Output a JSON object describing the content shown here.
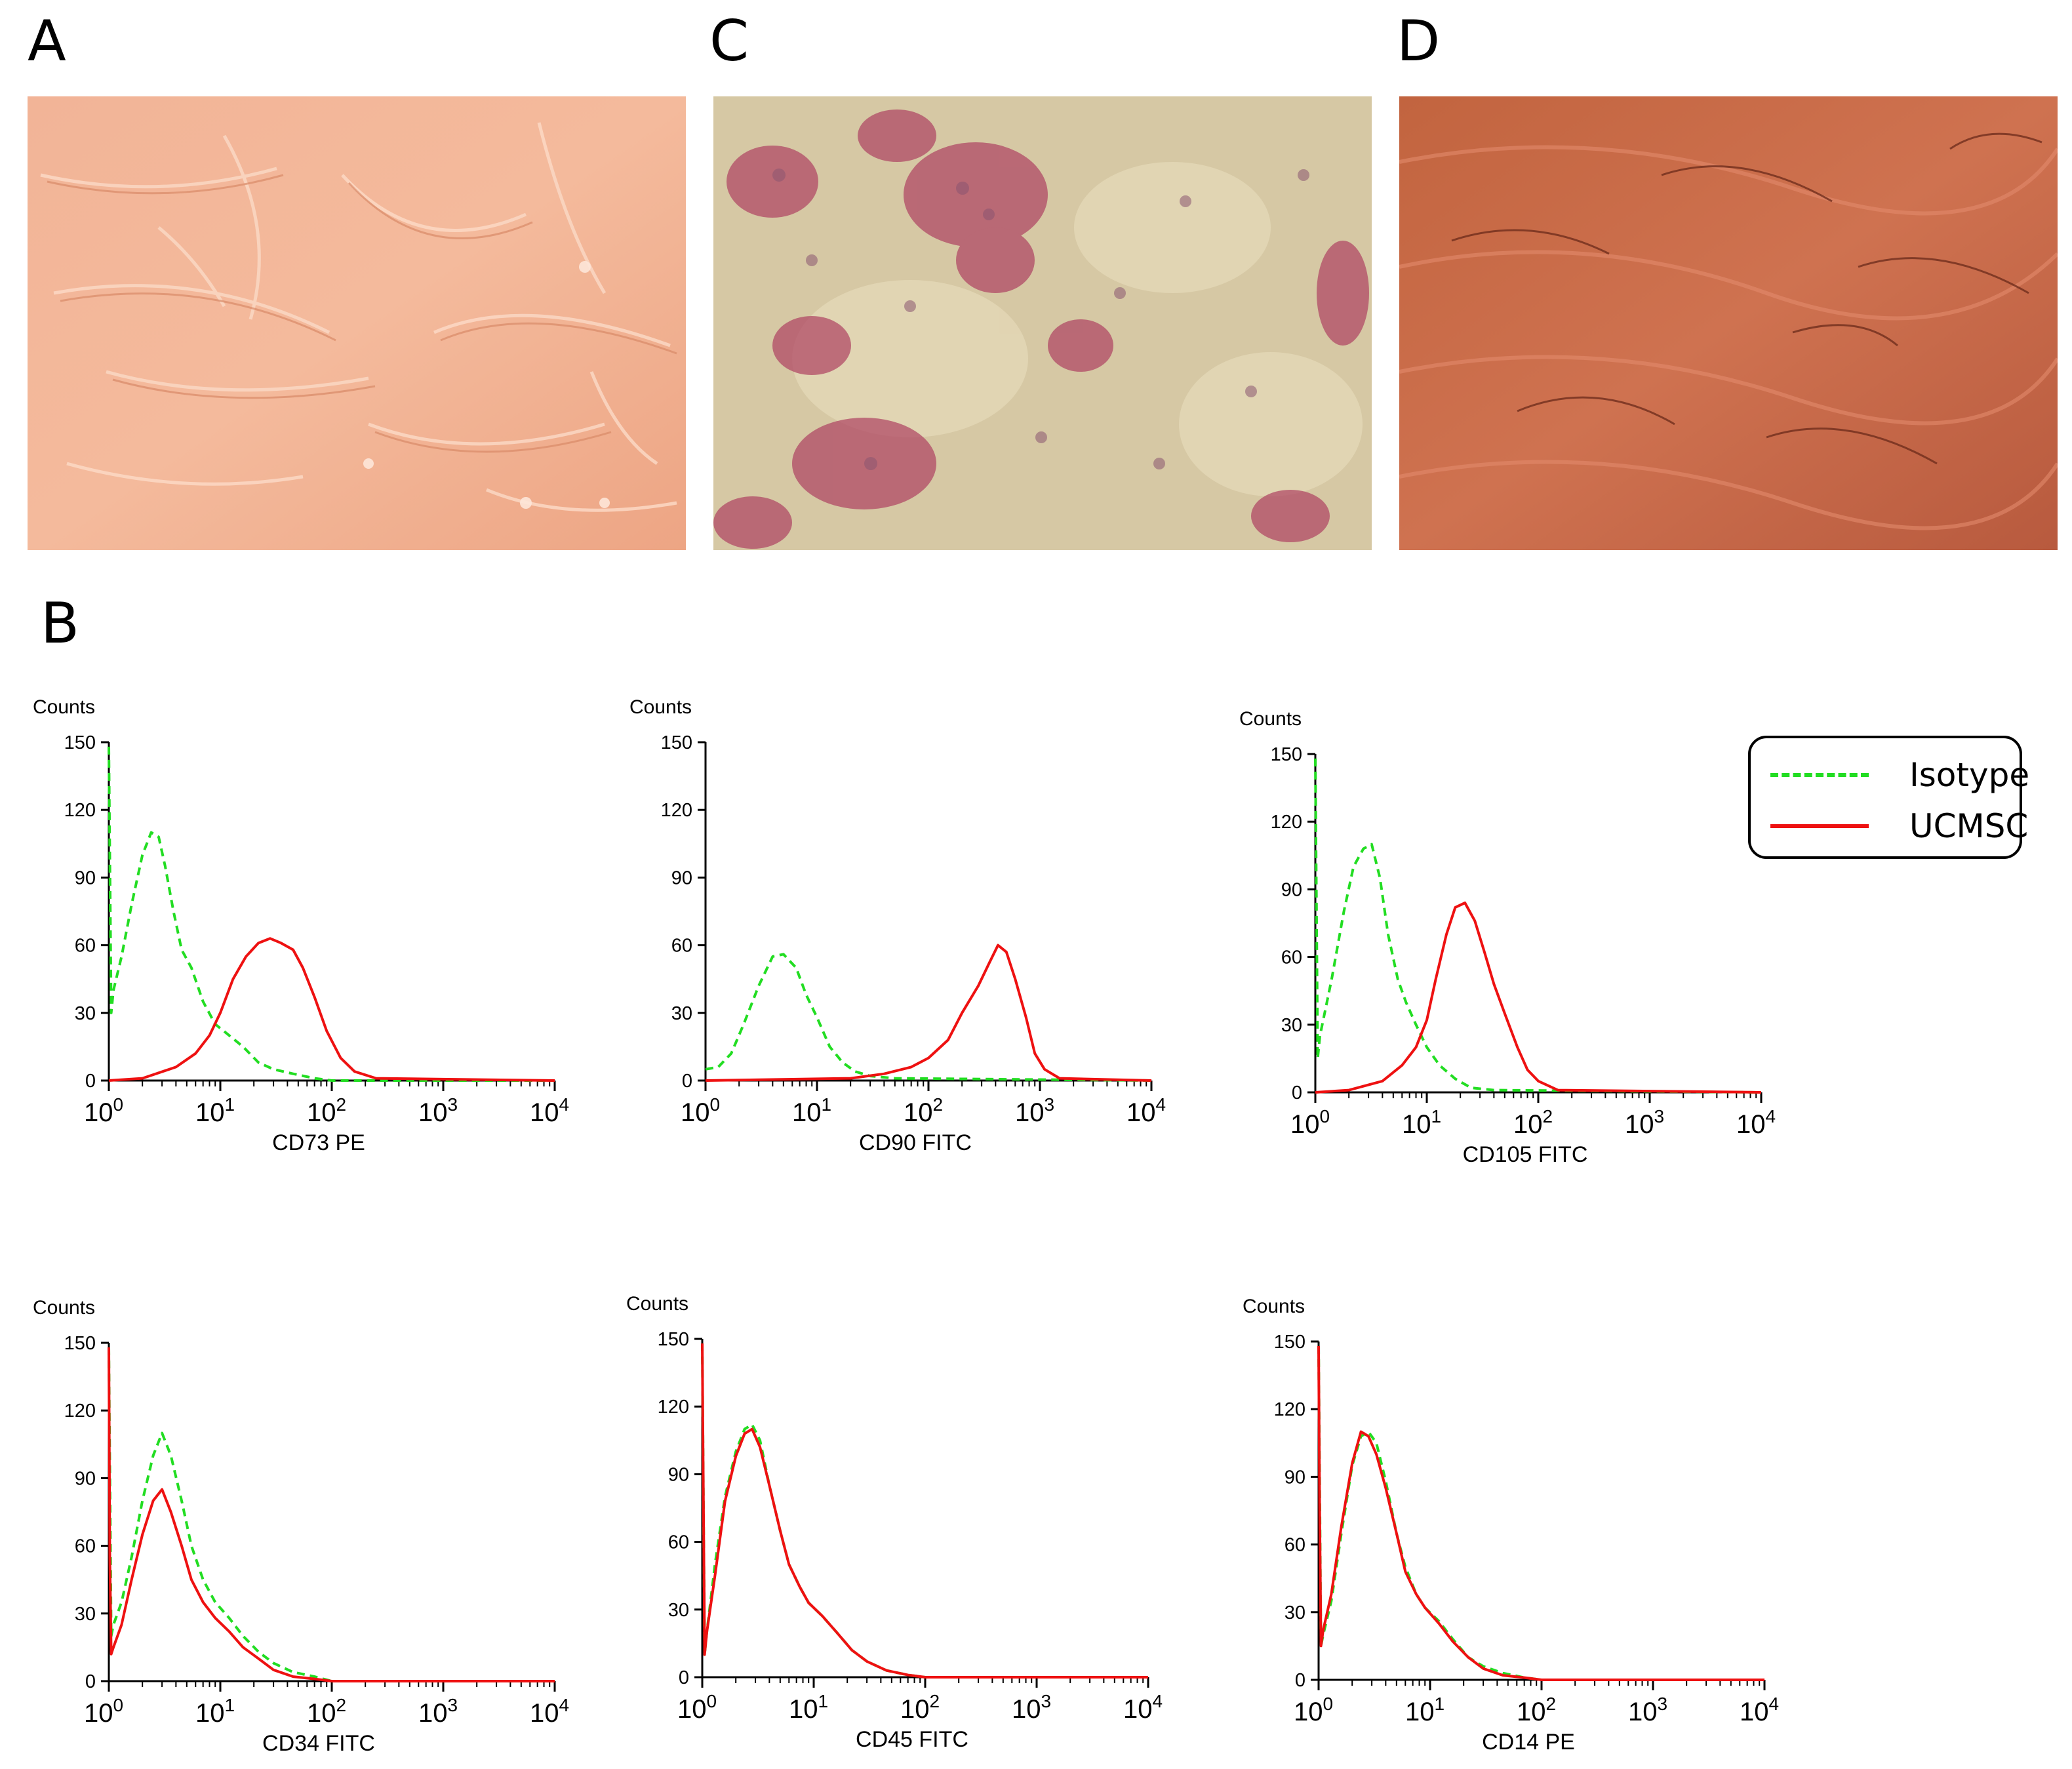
{
  "panels": {
    "a_label": "A",
    "c_label": "C",
    "d_label": "D",
    "b_label": "B"
  },
  "photos": [
    {
      "name": "photo-a",
      "description_colors": {
        "base": "#f0a98a",
        "line": "#ffe0cc"
      }
    },
    {
      "name": "photo-c",
      "description_colors": {
        "base": "#d8c6a2",
        "spot": "#b0405e"
      }
    },
    {
      "name": "photo-d",
      "description_colors": {
        "base": "#c86a4a",
        "line": "#7a2a1a"
      }
    }
  ],
  "legend": {
    "isotype_label": "Isotype",
    "ucmsc_label": "UCMSC",
    "isotype_color": "#22dd22",
    "ucmsc_color": "#ee1111"
  },
  "chart_data": [
    {
      "type": "line",
      "ylabel": "Counts",
      "xlabel": "CD73 PE",
      "x_scale": "log",
      "xlim": [
        1,
        10000
      ],
      "ylim": [
        0,
        150
      ],
      "yticks": [
        "150",
        "120",
        "90",
        "60",
        "30",
        "0"
      ],
      "xticks": [
        {
          "base": "10",
          "exp": "0"
        },
        {
          "base": "10",
          "exp": "1"
        },
        {
          "base": "10",
          "exp": "2"
        },
        {
          "base": "10",
          "exp": "3"
        },
        {
          "base": "10",
          "exp": "4"
        }
      ],
      "series": [
        {
          "role": "isotype",
          "x": [
            1,
            1.05,
            1.1,
            1.3,
            1.6,
            2,
            2.4,
            2.8,
            3.2,
            3.8,
            4.5,
            5.5,
            7,
            9,
            12,
            16,
            22,
            30,
            45,
            70,
            100,
            10000
          ],
          "y": [
            148,
            30,
            40,
            55,
            78,
            100,
            110,
            108,
            95,
            75,
            58,
            50,
            35,
            25,
            20,
            15,
            8,
            5,
            3,
            1,
            0,
            0
          ]
        },
        {
          "role": "ucmsc",
          "x": [
            1,
            2,
            4,
            6,
            8,
            10,
            13,
            17,
            22,
            28,
            35,
            45,
            55,
            70,
            90,
            120,
            160,
            250,
            10000
          ],
          "y": [
            0,
            1,
            6,
            12,
            20,
            30,
            45,
            55,
            61,
            63,
            61,
            58,
            50,
            37,
            22,
            10,
            4,
            1,
            0
          ]
        }
      ]
    },
    {
      "type": "line",
      "ylabel": "Counts",
      "xlabel": "CD90 FITC",
      "x_scale": "log",
      "xlim": [
        1,
        10000
      ],
      "ylim": [
        0,
        150
      ],
      "yticks": [
        "150",
        "120",
        "90",
        "60",
        "30",
        "0"
      ],
      "xticks": [
        {
          "base": "10",
          "exp": "0"
        },
        {
          "base": "10",
          "exp": "1"
        },
        {
          "base": "10",
          "exp": "2"
        },
        {
          "base": "10",
          "exp": "3"
        },
        {
          "base": "10",
          "exp": "4"
        }
      ],
      "series": [
        {
          "role": "isotype",
          "x": [
            1,
            1.3,
            1.7,
            2.2,
            3,
            4,
            5,
            6.5,
            8,
            10,
            13,
            17,
            22,
            30,
            50,
            10000
          ],
          "y": [
            5,
            6,
            12,
            25,
            42,
            55,
            56,
            50,
            38,
            28,
            15,
            8,
            4,
            2,
            1,
            0
          ]
        },
        {
          "role": "ucmsc",
          "x": [
            1,
            20,
            40,
            70,
            100,
            150,
            200,
            280,
            350,
            420,
            500,
            600,
            750,
            900,
            1100,
            1500,
            10000
          ],
          "y": [
            0,
            1,
            3,
            6,
            10,
            18,
            30,
            42,
            52,
            60,
            57,
            45,
            28,
            12,
            5,
            1,
            0
          ]
        }
      ]
    },
    {
      "type": "line",
      "ylabel": "Counts",
      "xlabel": "CD105 FITC",
      "x_scale": "log",
      "xlim": [
        1,
        10000
      ],
      "ylim": [
        0,
        150
      ],
      "yticks": [
        "150",
        "120",
        "90",
        "60",
        "30",
        "0"
      ],
      "xticks": [
        {
          "base": "10",
          "exp": "0"
        },
        {
          "base": "10",
          "exp": "1"
        },
        {
          "base": "10",
          "exp": "2"
        },
        {
          "base": "10",
          "exp": "3"
        },
        {
          "base": "10",
          "exp": "4"
        }
      ],
      "series": [
        {
          "role": "isotype",
          "x": [
            1,
            1.05,
            1.1,
            1.4,
            1.8,
            2.2,
            2.7,
            3.2,
            3.8,
            4.5,
            5.5,
            6.5,
            8,
            10,
            13,
            18,
            25,
            40,
            10000
          ],
          "y": [
            148,
            15,
            25,
            50,
            80,
            100,
            108,
            110,
            95,
            70,
            50,
            40,
            30,
            20,
            12,
            6,
            2,
            1,
            0
          ]
        },
        {
          "role": "ucmsc",
          "x": [
            1,
            2,
            4,
            6,
            8,
            10,
            12,
            15,
            18,
            22,
            27,
            33,
            40,
            50,
            65,
            80,
            100,
            150,
            10000
          ],
          "y": [
            0,
            1,
            5,
            12,
            20,
            32,
            50,
            70,
            82,
            84,
            76,
            62,
            48,
            35,
            20,
            10,
            5,
            1,
            0
          ]
        }
      ]
    },
    {
      "type": "line",
      "ylabel": "Counts",
      "xlabel": "CD34 FITC",
      "x_scale": "log",
      "xlim": [
        1,
        10000
      ],
      "ylim": [
        0,
        150
      ],
      "yticks": [
        "150",
        "120",
        "90",
        "60",
        "30",
        "0"
      ],
      "xticks": [
        {
          "base": "10",
          "exp": "0"
        },
        {
          "base": "10",
          "exp": "1"
        },
        {
          "base": "10",
          "exp": "2"
        },
        {
          "base": "10",
          "exp": "3"
        },
        {
          "base": "10",
          "exp": "4"
        }
      ],
      "series": [
        {
          "role": "isotype",
          "x": [
            1,
            1.05,
            1.1,
            1.3,
            1.6,
            2,
            2.5,
            3,
            3.6,
            4.5,
            5.5,
            7,
            9,
            12,
            16,
            22,
            30,
            45,
            70,
            100,
            10000
          ],
          "y": [
            148,
            20,
            25,
            35,
            55,
            80,
            100,
            110,
            100,
            80,
            60,
            45,
            35,
            28,
            20,
            13,
            8,
            4,
            2,
            0,
            0
          ]
        },
        {
          "role": "ucmsc",
          "x": [
            1,
            1.02,
            1.05,
            1.1,
            1.3,
            1.6,
            2,
            2.5,
            3,
            3.6,
            4.5,
            5.5,
            7,
            9,
            12,
            16,
            22,
            30,
            45,
            70,
            100,
            10000
          ],
          "y": [
            148,
            55,
            12,
            15,
            25,
            45,
            65,
            80,
            85,
            75,
            60,
            45,
            35,
            28,
            22,
            15,
            10,
            5,
            2,
            1,
            0,
            0
          ]
        }
      ]
    },
    {
      "type": "line",
      "ylabel": "Counts",
      "xlabel": "CD45 FITC",
      "x_scale": "log",
      "xlim": [
        1,
        10000
      ],
      "ylim": [
        0,
        150
      ],
      "yticks": [
        "150",
        "120",
        "90",
        "60",
        "30",
        "0"
      ],
      "xticks": [
        {
          "base": "10",
          "exp": "0"
        },
        {
          "base": "10",
          "exp": "1"
        },
        {
          "base": "10",
          "exp": "2"
        },
        {
          "base": "10",
          "exp": "3"
        },
        {
          "base": "10",
          "exp": "4"
        }
      ],
      "series": [
        {
          "role": "isotype",
          "x": [
            1,
            1.05,
            1.1,
            1.3,
            1.6,
            2,
            2.4,
            2.8,
            3.3,
            4,
            5,
            6,
            7.5,
            9,
            12,
            16,
            22,
            30,
            45,
            70,
            100,
            10000
          ],
          "y": [
            148,
            10,
            20,
            50,
            80,
            100,
            110,
            112,
            105,
            85,
            65,
            50,
            40,
            33,
            27,
            20,
            12,
            7,
            3,
            1,
            0,
            0
          ]
        },
        {
          "role": "ucmsc",
          "x": [
            1,
            1.02,
            1.05,
            1.1,
            1.3,
            1.6,
            2,
            2.4,
            2.8,
            3.3,
            4,
            5,
            6,
            7.5,
            9,
            12,
            16,
            22,
            30,
            45,
            70,
            100,
            10000
          ],
          "y": [
            148,
            90,
            10,
            20,
            45,
            78,
            98,
            108,
            110,
            102,
            85,
            65,
            50,
            40,
            33,
            27,
            20,
            12,
            7,
            3,
            1,
            0,
            0
          ]
        }
      ]
    },
    {
      "type": "line",
      "ylabel": "Counts",
      "xlabel": "CD14 PE",
      "x_scale": "log",
      "xlim": [
        1,
        10000
      ],
      "ylim": [
        0,
        150
      ],
      "yticks": [
        "150",
        "120",
        "90",
        "60",
        "30",
        "0"
      ],
      "xticks": [
        {
          "base": "10",
          "exp": "0"
        },
        {
          "base": "10",
          "exp": "1"
        },
        {
          "base": "10",
          "exp": "2"
        },
        {
          "base": "10",
          "exp": "3"
        },
        {
          "base": "10",
          "exp": "4"
        }
      ],
      "series": [
        {
          "role": "isotype",
          "x": [
            1,
            1.05,
            1.1,
            1.3,
            1.6,
            2,
            2.4,
            2.8,
            3.3,
            4,
            5,
            6,
            7.5,
            9,
            12,
            16,
            22,
            30,
            45,
            70,
            100,
            10000
          ],
          "y": [
            148,
            15,
            20,
            35,
            65,
            95,
            108,
            110,
            105,
            88,
            65,
            50,
            38,
            32,
            26,
            18,
            10,
            6,
            3,
            1,
            0,
            0
          ]
        },
        {
          "role": "ucmsc",
          "x": [
            1,
            1.02,
            1.05,
            1.1,
            1.3,
            1.6,
            2,
            2.4,
            2.8,
            3.3,
            4,
            5,
            6,
            7.5,
            9,
            12,
            16,
            22,
            30,
            45,
            70,
            100,
            10000
          ],
          "y": [
            148,
            80,
            15,
            22,
            38,
            68,
            96,
            110,
            108,
            100,
            85,
            65,
            48,
            38,
            32,
            25,
            17,
            10,
            5,
            2,
            1,
            0,
            0
          ]
        }
      ]
    }
  ]
}
